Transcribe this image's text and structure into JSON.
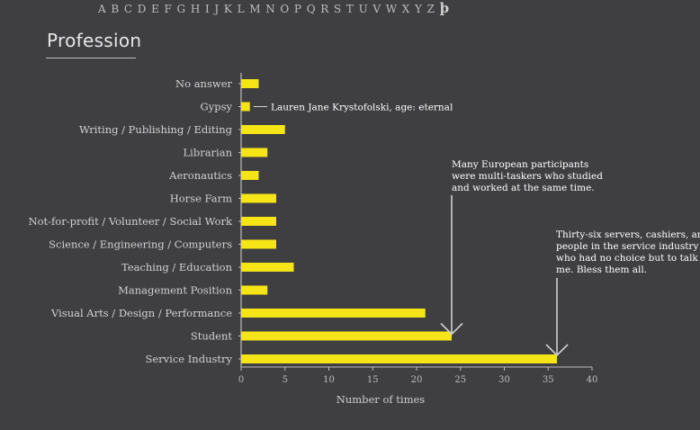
{
  "alphabet": [
    "A",
    "B",
    "C",
    "D",
    "E",
    "F",
    "G",
    "H",
    "I",
    "J",
    "K",
    "L",
    "M",
    "N",
    "O",
    "P",
    "Q",
    "R",
    "S",
    "T",
    "U",
    "V",
    "W",
    "X",
    "Y",
    "Z"
  ],
  "alphabet_extra": "þ",
  "colors": {
    "background": "#3f3f41",
    "bar": "#f5e416",
    "axis": "#bdbdbd",
    "annotation": "#cfcfcf"
  },
  "chart_data": {
    "type": "bar",
    "orientation": "horizontal",
    "title": "Profession",
    "xlabel": "Number of times",
    "ylabel": "",
    "xlim": [
      0,
      40
    ],
    "xticks": [
      0,
      5,
      10,
      15,
      20,
      25,
      30,
      35,
      40
    ],
    "grid": false,
    "categories": [
      "No answer",
      "Gypsy",
      "Writing / Publishing / Editing",
      "Librarian",
      "Aeronautics",
      "Horse Farm",
      "Not-for-profit / Volunteer / Social Work",
      "Science / Engineering / Computers",
      "Teaching / Education",
      "Management Position",
      "Visual Arts / Design / Performance",
      "Student",
      "Service Industry"
    ],
    "values": [
      2,
      1,
      5,
      3,
      2,
      4,
      4,
      4,
      6,
      3,
      21,
      24,
      36
    ],
    "annotations": [
      {
        "category": "Gypsy",
        "lines": [
          "Lauren Jane Krystofolski, age: eternal"
        ]
      },
      {
        "category": "Student",
        "lines": [
          "Many European participants",
          "were multi-taskers who studied",
          "and worked at the same time."
        ]
      },
      {
        "category": "Service Industry",
        "lines": [
          "Thirty-six servers, cashiers, and",
          "people in the service industry",
          "who had no choice but to talk to",
          "me. Bless them all."
        ]
      }
    ]
  }
}
